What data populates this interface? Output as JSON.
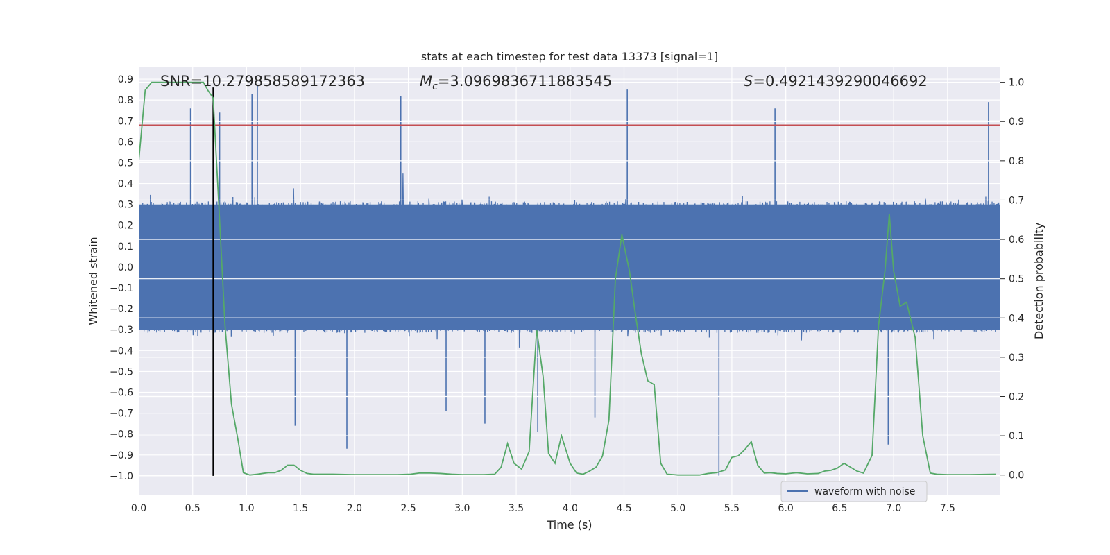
{
  "chart_data": {
    "type": "line",
    "title": "stats at each timestep for test data 13373 [signal=1]",
    "xlabel": "Time (s)",
    "ylabel_left": "Whitened strain",
    "ylabel_right": "Detection probability",
    "xlim": [
      0.0,
      7.99
    ],
    "ylim_left": [
      -1.09,
      0.96
    ],
    "ylim_right": [
      -0.05,
      1.04
    ],
    "x_ticks": [
      "0.0",
      "0.5",
      "1.0",
      "1.5",
      "2.0",
      "2.5",
      "3.0",
      "3.5",
      "4.0",
      "4.5",
      "5.0",
      "5.5",
      "6.0",
      "6.5",
      "7.0",
      "7.5"
    ],
    "y_ticks_left": [
      "0.9",
      "0.8",
      "0.7",
      "0.6",
      "0.5",
      "0.4",
      "0.3",
      "0.2",
      "0.1",
      "0.0",
      "-0.1",
      "-0.2",
      "-0.3",
      "-0.4",
      "-0.5",
      "-0.6",
      "-0.7",
      "-0.8",
      "-0.9",
      "-1.0"
    ],
    "y_ticks_right": [
      "1.0",
      "0.9",
      "0.8",
      "0.7",
      "0.6",
      "0.5",
      "0.4",
      "0.3",
      "0.2",
      "0.1",
      "0.0"
    ],
    "grid": true,
    "legend": {
      "label": "waveform with noise",
      "placement": "lower-right"
    },
    "annotations": {
      "snr": "SNR=10.279858589172363",
      "mc_symbol": "M",
      "mc_sub": "c",
      "mc_value": "=3.0969836711883545",
      "s_symbol": "S",
      "s_value": "=0.4921439290046692"
    },
    "threshold_line": {
      "axis": "left",
      "y": 0.68,
      "color": "#c44e52"
    },
    "event_line": {
      "x": 0.69,
      "y_from": -1.0,
      "y_to": 0.86,
      "color": "#000000"
    },
    "waveform_noise_envelope": {
      "name": "waveform with noise",
      "color": "#4c72b0",
      "core_amplitude": 0.3,
      "typical_peak": 0.45,
      "strong_peaks": [
        {
          "x": 0.48,
          "y": 0.76
        },
        {
          "x": 1.05,
          "y": 0.83
        },
        {
          "x": 1.1,
          "y": 0.87
        },
        {
          "x": 0.75,
          "y": 0.74
        },
        {
          "x": 2.43,
          "y": 0.82
        },
        {
          "x": 4.53,
          "y": 0.85
        },
        {
          "x": 5.9,
          "y": 0.76
        },
        {
          "x": 7.88,
          "y": 0.79
        }
      ],
      "strong_troughs": [
        {
          "x": 1.45,
          "y": -0.76
        },
        {
          "x": 1.93,
          "y": -0.87
        },
        {
          "x": 2.85,
          "y": -0.69
        },
        {
          "x": 3.21,
          "y": -0.75
        },
        {
          "x": 3.7,
          "y": -0.79
        },
        {
          "x": 4.23,
          "y": -0.72
        },
        {
          "x": 5.38,
          "y": -1.0
        },
        {
          "x": 6.95,
          "y": -0.85
        }
      ]
    },
    "detection_probability": {
      "name": "detection probability",
      "color": "#55a868",
      "x": [
        0.0,
        0.06,
        0.12,
        0.18,
        0.24,
        0.3,
        0.36,
        0.42,
        0.48,
        0.54,
        0.6,
        0.64,
        0.69,
        0.74,
        0.8,
        0.86,
        0.92,
        0.97,
        1.03,
        1.1,
        1.2,
        1.26,
        1.32,
        1.38,
        1.44,
        1.5,
        1.56,
        1.62,
        1.8,
        2.0,
        2.2,
        2.4,
        2.52,
        2.6,
        2.7,
        2.8,
        2.9,
        3.0,
        3.2,
        3.3,
        3.36,
        3.42,
        3.48,
        3.55,
        3.62,
        3.69,
        3.75,
        3.8,
        3.86,
        3.92,
        4.0,
        4.06,
        4.12,
        4.18,
        4.24,
        4.3,
        4.36,
        4.42,
        4.48,
        4.55,
        4.6,
        4.66,
        4.72,
        4.78,
        4.84,
        4.9,
        4.96,
        5.0,
        5.1,
        5.2,
        5.28,
        5.36,
        5.44,
        5.5,
        5.56,
        5.62,
        5.68,
        5.74,
        5.8,
        5.86,
        5.92,
        6.0,
        6.1,
        6.2,
        6.3,
        6.36,
        6.42,
        6.48,
        6.54,
        6.6,
        6.66,
        6.72,
        6.8,
        6.86,
        6.92,
        6.96,
        7.0,
        7.06,
        7.12,
        7.2,
        7.27,
        7.34,
        7.4,
        7.5,
        7.7,
        7.95
      ],
      "y": [
        0.8,
        0.98,
        1.0,
        1.0,
        1.0,
        1.0,
        1.0,
        1.0,
        1.0,
        1.0,
        1.0,
        0.98,
        0.96,
        0.7,
        0.38,
        0.18,
        0.09,
        0.006,
        0.0,
        0.002,
        0.006,
        0.006,
        0.012,
        0.025,
        0.025,
        0.012,
        0.004,
        0.002,
        0.002,
        0.001,
        0.001,
        0.001,
        0.002,
        0.005,
        0.005,
        0.004,
        0.002,
        0.001,
        0.001,
        0.002,
        0.02,
        0.08,
        0.03,
        0.015,
        0.06,
        0.37,
        0.25,
        0.055,
        0.03,
        0.1,
        0.03,
        0.005,
        0.002,
        0.01,
        0.02,
        0.048,
        0.14,
        0.5,
        0.612,
        0.52,
        0.42,
        0.31,
        0.24,
        0.23,
        0.03,
        0.002,
        0.001,
        0.0,
        0.0,
        0.0,
        0.004,
        0.006,
        0.013,
        0.045,
        0.049,
        0.065,
        0.085,
        0.025,
        0.005,
        0.006,
        0.004,
        0.003,
        0.006,
        0.003,
        0.004,
        0.01,
        0.012,
        0.018,
        0.03,
        0.02,
        0.01,
        0.005,
        0.05,
        0.38,
        0.52,
        0.665,
        0.52,
        0.43,
        0.44,
        0.35,
        0.1,
        0.005,
        0.002,
        0.001,
        0.001,
        0.002
      ]
    }
  }
}
